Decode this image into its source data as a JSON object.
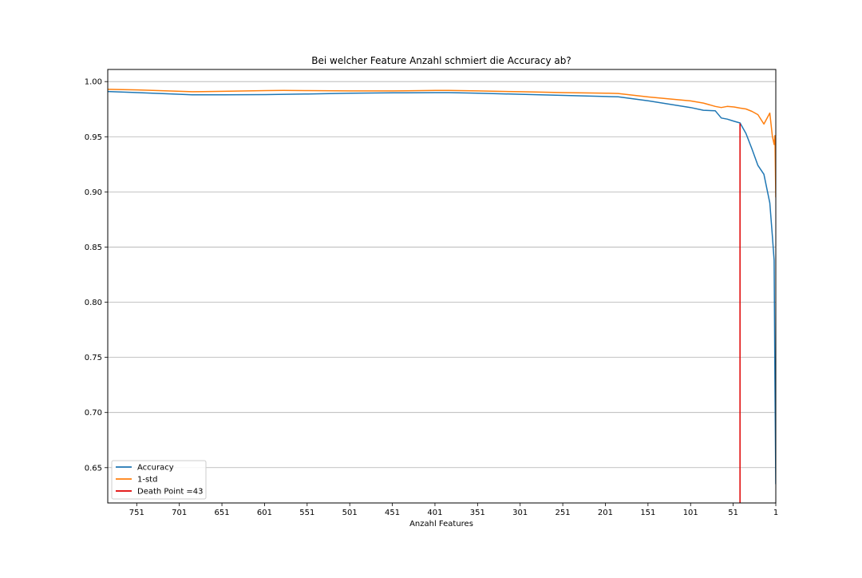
{
  "chart_data": {
    "type": "line",
    "title": "Bei welcher Feature Anzahl schmiert die Accuracy ab?",
    "xlabel": "Anzahl Features",
    "ylabel": "",
    "x_inverted": true,
    "xlim": [
      785,
      1
    ],
    "ylim": [
      0.618,
      1.011
    ],
    "x_ticks": [
      751,
      701,
      651,
      601,
      551,
      501,
      451,
      401,
      351,
      301,
      251,
      201,
      151,
      101,
      51,
      1
    ],
    "x_tick_labels": [
      "751",
      "701",
      "651",
      "601",
      "551",
      "501",
      "451",
      "401",
      "351",
      "301",
      "251",
      "201",
      "151",
      "101",
      "51",
      "1"
    ],
    "y_ticks": [
      0.65,
      0.7,
      0.75,
      0.8,
      0.85,
      0.9,
      0.95,
      1.0
    ],
    "y_tick_labels": [
      "0.65",
      "0.70",
      "0.75",
      "0.80",
      "0.85",
      "0.90",
      "0.95",
      "1.00"
    ],
    "grid": "horizontal",
    "legend_position": "bottom-left",
    "series": [
      {
        "name": "Accuracy",
        "color": "#1f77b4",
        "x": [
          785,
          750,
          700,
          686,
          650,
          600,
          550,
          500,
          450,
          400,
          385,
          350,
          300,
          250,
          200,
          186,
          150,
          101,
          86,
          72,
          65,
          58,
          50,
          43,
          36,
          29,
          22,
          15,
          8,
          5,
          3,
          2,
          1
        ],
        "y": [
          0.991,
          0.99,
          0.9885,
          0.988,
          0.988,
          0.9882,
          0.9888,
          0.9894,
          0.9898,
          0.99,
          0.99,
          0.9894,
          0.9885,
          0.9875,
          0.9865,
          0.9862,
          0.9825,
          0.9765,
          0.974,
          0.9735,
          0.967,
          0.966,
          0.964,
          0.9625,
          0.953,
          0.939,
          0.924,
          0.916,
          0.89,
          0.86,
          0.838,
          0.73,
          0.635
        ]
      },
      {
        "name": "1-std",
        "color": "#ff7f0e",
        "x": [
          785,
          750,
          700,
          686,
          650,
          600,
          579,
          550,
          500,
          450,
          400,
          385,
          350,
          300,
          250,
          200,
          186,
          150,
          101,
          86,
          72,
          65,
          58,
          50,
          43,
          36,
          29,
          22,
          15,
          8,
          5,
          3,
          2,
          1
        ],
        "y": [
          0.993,
          0.9925,
          0.9912,
          0.9908,
          0.9912,
          0.9918,
          0.992,
          0.9918,
          0.9915,
          0.9915,
          0.992,
          0.992,
          0.9915,
          0.9908,
          0.99,
          0.9895,
          0.9892,
          0.986,
          0.9825,
          0.9805,
          0.9775,
          0.9765,
          0.9775,
          0.977,
          0.976,
          0.9752,
          0.973,
          0.97,
          0.9615,
          0.9715,
          0.9505,
          0.943,
          0.951,
          0.895
        ]
      }
    ],
    "vertical_lines": [
      {
        "name": "Death Point =43",
        "x": 43,
        "color": "#e00000"
      }
    ]
  }
}
